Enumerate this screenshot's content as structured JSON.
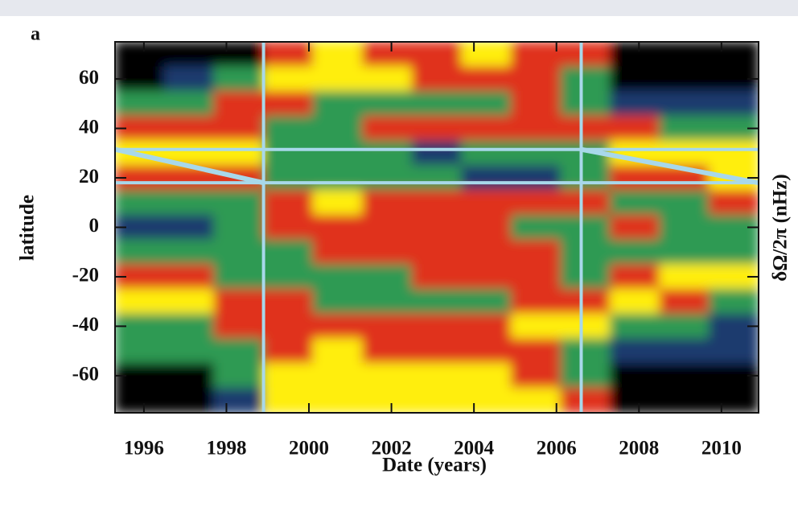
{
  "chart_data": {
    "type": "heatmap",
    "panel_label": "a",
    "x_label": "Date (years)",
    "y_label": "latitude",
    "y2_label": "δΩ/2π (nHz)",
    "xbins": [
      1995.3,
      1996.5,
      1997.7,
      1998.9,
      2000.1,
      2001.3,
      2002.5,
      2003.7,
      2004.9,
      2006.1,
      2007.3,
      2008.5,
      2009.7,
      2010.9
    ],
    "ybins": [
      75,
      65,
      55,
      45,
      35,
      25,
      15,
      5,
      -5,
      -15,
      -25,
      -35,
      -45,
      -55,
      -65,
      -75
    ],
    "z": [
      [
        -2,
        -2,
        -2,
        1,
        2,
        1,
        1,
        2,
        1,
        1,
        -2,
        -2,
        -2
      ],
      [
        -2,
        -1,
        0,
        2,
        2,
        2,
        1,
        1,
        1,
        0,
        -2,
        -2,
        -2
      ],
      [
        0,
        0,
        1,
        1,
        0,
        0,
        0,
        0,
        1,
        0,
        -1,
        -1,
        -1
      ],
      [
        1,
        1,
        1,
        0,
        0,
        1,
        1,
        1,
        1,
        1,
        1,
        0,
        0
      ],
      [
        2,
        2,
        2,
        0,
        0,
        0,
        -1,
        0,
        0,
        0,
        2,
        2,
        2
      ],
      [
        1,
        1,
        1,
        0,
        0,
        0,
        0,
        -1,
        -1,
        0,
        1,
        1,
        2
      ],
      [
        0,
        0,
        0,
        1,
        2,
        1,
        1,
        1,
        1,
        1,
        0,
        0,
        1
      ],
      [
        -1,
        -1,
        0,
        1,
        1,
        1,
        1,
        1,
        0,
        0,
        1,
        0,
        0
      ],
      [
        0,
        0,
        0,
        0,
        1,
        1,
        1,
        1,
        1,
        0,
        0,
        0,
        0
      ],
      [
        1,
        1,
        0,
        0,
        0,
        0,
        1,
        1,
        1,
        0,
        1,
        2,
        2
      ],
      [
        2,
        2,
        1,
        1,
        0,
        0,
        0,
        0,
        1,
        1,
        2,
        1,
        0
      ],
      [
        0,
        0,
        1,
        1,
        1,
        1,
        1,
        1,
        2,
        2,
        0,
        0,
        -1
      ],
      [
        0,
        0,
        0,
        1,
        2,
        1,
        1,
        1,
        1,
        0,
        -1,
        -1,
        -1
      ],
      [
        -2,
        -2,
        0,
        2,
        2,
        2,
        2,
        2,
        1,
        0,
        -2,
        -2,
        -2
      ],
      [
        -2,
        -2,
        -1,
        2,
        2,
        2,
        2,
        2,
        2,
        1,
        -2,
        -2,
        -2
      ]
    ],
    "zlim": [
      -2,
      2
    ],
    "colors": [
      "#000000",
      "#1a3a6e",
      "#2e9a52",
      "#e0321c",
      "#ffee10"
    ],
    "xlim": [
      1995.3,
      2010.9
    ],
    "ylim": [
      -75,
      75
    ],
    "xticks": [
      1996,
      1998,
      2000,
      2002,
      2004,
      2006,
      2008,
      2010
    ],
    "yticks": [
      -60,
      -40,
      -20,
      0,
      20,
      40,
      60
    ],
    "vlines": [
      1998.9,
      2006.6
    ],
    "hlines": [
      31.5,
      18
    ],
    "line_color": "#a8d8ea",
    "segments": [
      {
        "x": [
          1995.3,
          1998.9
        ],
        "y": [
          31.5,
          18
        ]
      },
      {
        "x": [
          2006.6,
          2010.9
        ],
        "y": [
          31.5,
          18
        ]
      }
    ]
  }
}
